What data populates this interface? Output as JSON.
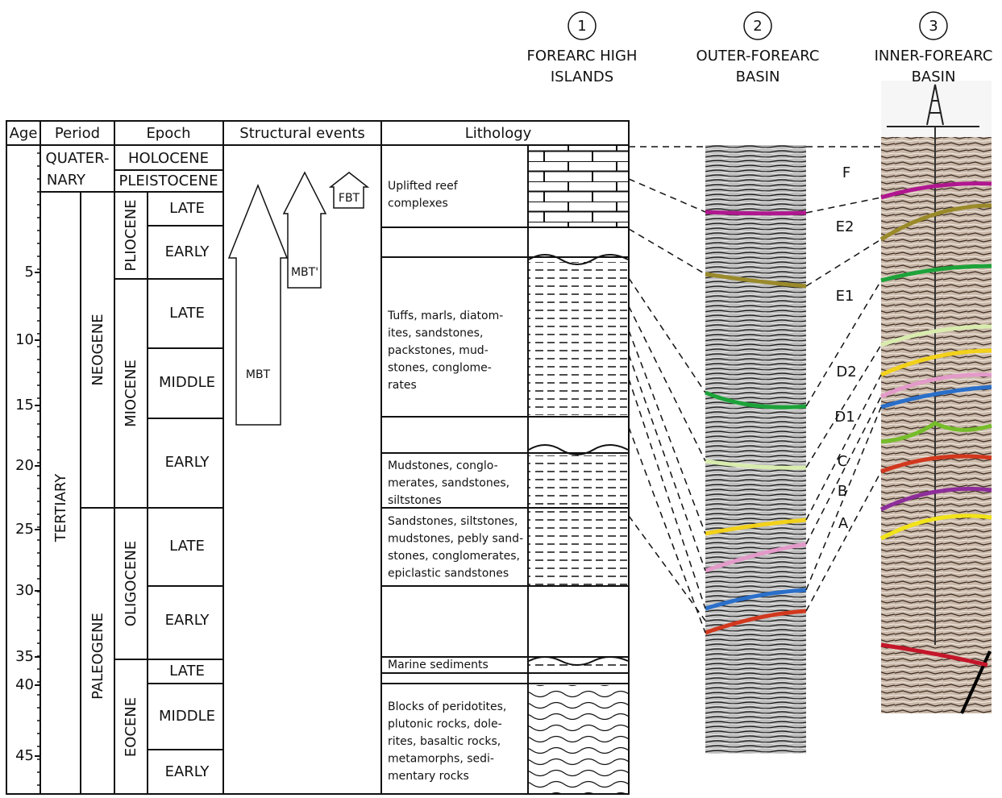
{
  "columns": [
    {
      "number": "1",
      "label_lines": [
        "FOREARC HIGH",
        "ISLANDS"
      ]
    },
    {
      "number": "2",
      "label_lines": [
        "OUTER-FOREARC",
        "BASIN"
      ]
    },
    {
      "number": "3",
      "label_lines": [
        "INNER-FOREARC",
        "BASIN"
      ]
    }
  ],
  "headers": [
    "Age",
    "Period",
    "Epoch",
    "Structural events",
    "Lithology"
  ],
  "age_ticks": [
    5,
    10,
    15,
    20,
    25,
    30,
    35,
    40,
    45
  ],
  "periods": {
    "quaternary": [
      "QUATER-",
      "NARY"
    ],
    "tertiary": "TERTIARY",
    "neogene": "NEOGENE",
    "paleogene": "PALEOGENE"
  },
  "epochs": [
    "HOLOCENE",
    "PLEISTOCENE",
    "PLIOCENE",
    "MIOCENE",
    "OLIGOCENE",
    "EOCENE"
  ],
  "subdivisions": [
    "LATE",
    "EARLY",
    "LATE",
    "MIDDLE",
    "EARLY",
    "LATE",
    "EARLY",
    "LATE",
    "MIDDLE",
    "EARLY"
  ],
  "structural_events": [
    "MBT",
    "MBT'",
    "FBT"
  ],
  "lithology": [
    {
      "lines": [
        "Uplifted reef",
        "complexes"
      ]
    },
    {
      "lines": [
        "Tuffs, marls, diatom-",
        "ites, sandstones,",
        "packstones, mud-",
        "stones, conglome-",
        "rates"
      ]
    },
    {
      "lines": [
        "Mudstones, conglo-",
        "merates, sandstones,",
        "siltstones"
      ]
    },
    {
      "lines": [
        "Sandstones, siltstones,",
        "mudstones, pebly sand-",
        "stones, conglomerates,",
        "epiclastic sandstones"
      ]
    },
    {
      "lines": [
        "Marine sediments"
      ]
    },
    {
      "lines": [
        "Blocks of peridotites,",
        "plutonic rocks, dole-",
        "rites, basaltic rocks,",
        "metamorphs,  sedi-",
        "mentary rocks"
      ]
    }
  ],
  "horizons": [
    "F",
    "E2",
    "E1",
    "D2",
    "D1",
    "C",
    "B",
    "A"
  ]
}
